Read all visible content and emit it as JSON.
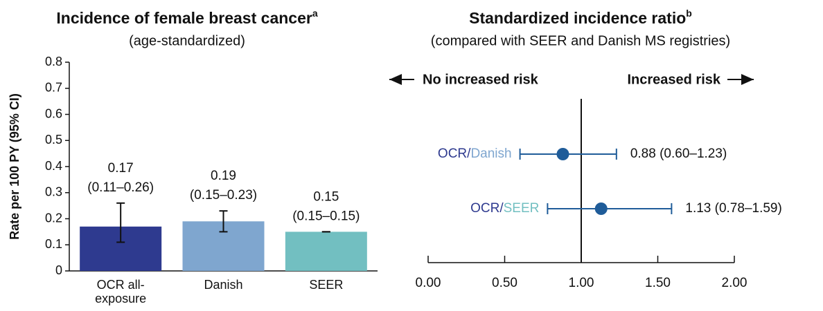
{
  "chart_data": [
    {
      "type": "bar",
      "title": "Incidence of female breast cancer",
      "title_superscript": "a",
      "subtitle": "(age-standardized)",
      "y_label": "Rate per 100 PY (95% CI)",
      "categories": [
        "OCR all-exposure",
        "Danish",
        "SEER"
      ],
      "values": [
        0.17,
        0.19,
        0.15
      ],
      "error_low": [
        0.11,
        0.15,
        0.15
      ],
      "error_high": [
        0.26,
        0.23,
        0.15
      ],
      "interval_labels": [
        "(0.11–0.26)",
        "(0.15–0.23)",
        "(0.15–0.15)"
      ],
      "colors": [
        "#2e3a8f",
        "#7fa6cf",
        "#72bfc1"
      ],
      "ylim": [
        0,
        0.8
      ],
      "yticks": [
        0,
        0.1,
        0.2,
        0.3,
        0.4,
        0.5,
        0.6,
        0.7,
        0.8
      ]
    },
    {
      "type": "forest",
      "title": "Standardized incidence ratio",
      "title_superscript": "b",
      "subtitle": "(compared with SEER and Danish MS registries)",
      "annotations": [
        "No increased risk",
        "Increased risk"
      ],
      "reference": 1,
      "color": "#1f5c99",
      "rows": [
        {
          "label_parts": [
            {
              "text": "OCR",
              "color": "#2e3a8f"
            },
            {
              "text": "/",
              "color": "#2e3a8f"
            },
            {
              "text": "Danish",
              "color": "#7fa6cf"
            }
          ],
          "value": 0.88,
          "lower": 0.6,
          "upper": 1.23,
          "value_label": "0.88 (0.60–1.23)"
        },
        {
          "label_parts": [
            {
              "text": "OCR",
              "color": "#2e3a8f"
            },
            {
              "text": "/",
              "color": "#2e3a8f"
            },
            {
              "text": "SEER",
              "color": "#72bfc1"
            }
          ],
          "value": 1.13,
          "lower": 0.78,
          "upper": 1.59,
          "value_label": "1.13 (0.78–1.59)"
        }
      ],
      "xlim": [
        0,
        2
      ],
      "xticks": [
        {
          "value": 0,
          "label": "0.00"
        },
        {
          "value": 0.5,
          "label": "0.50"
        },
        {
          "value": 1,
          "label": "1.00"
        },
        {
          "value": 1.5,
          "label": "1.50"
        },
        {
          "value": 2,
          "label": "2.00"
        }
      ]
    }
  ]
}
